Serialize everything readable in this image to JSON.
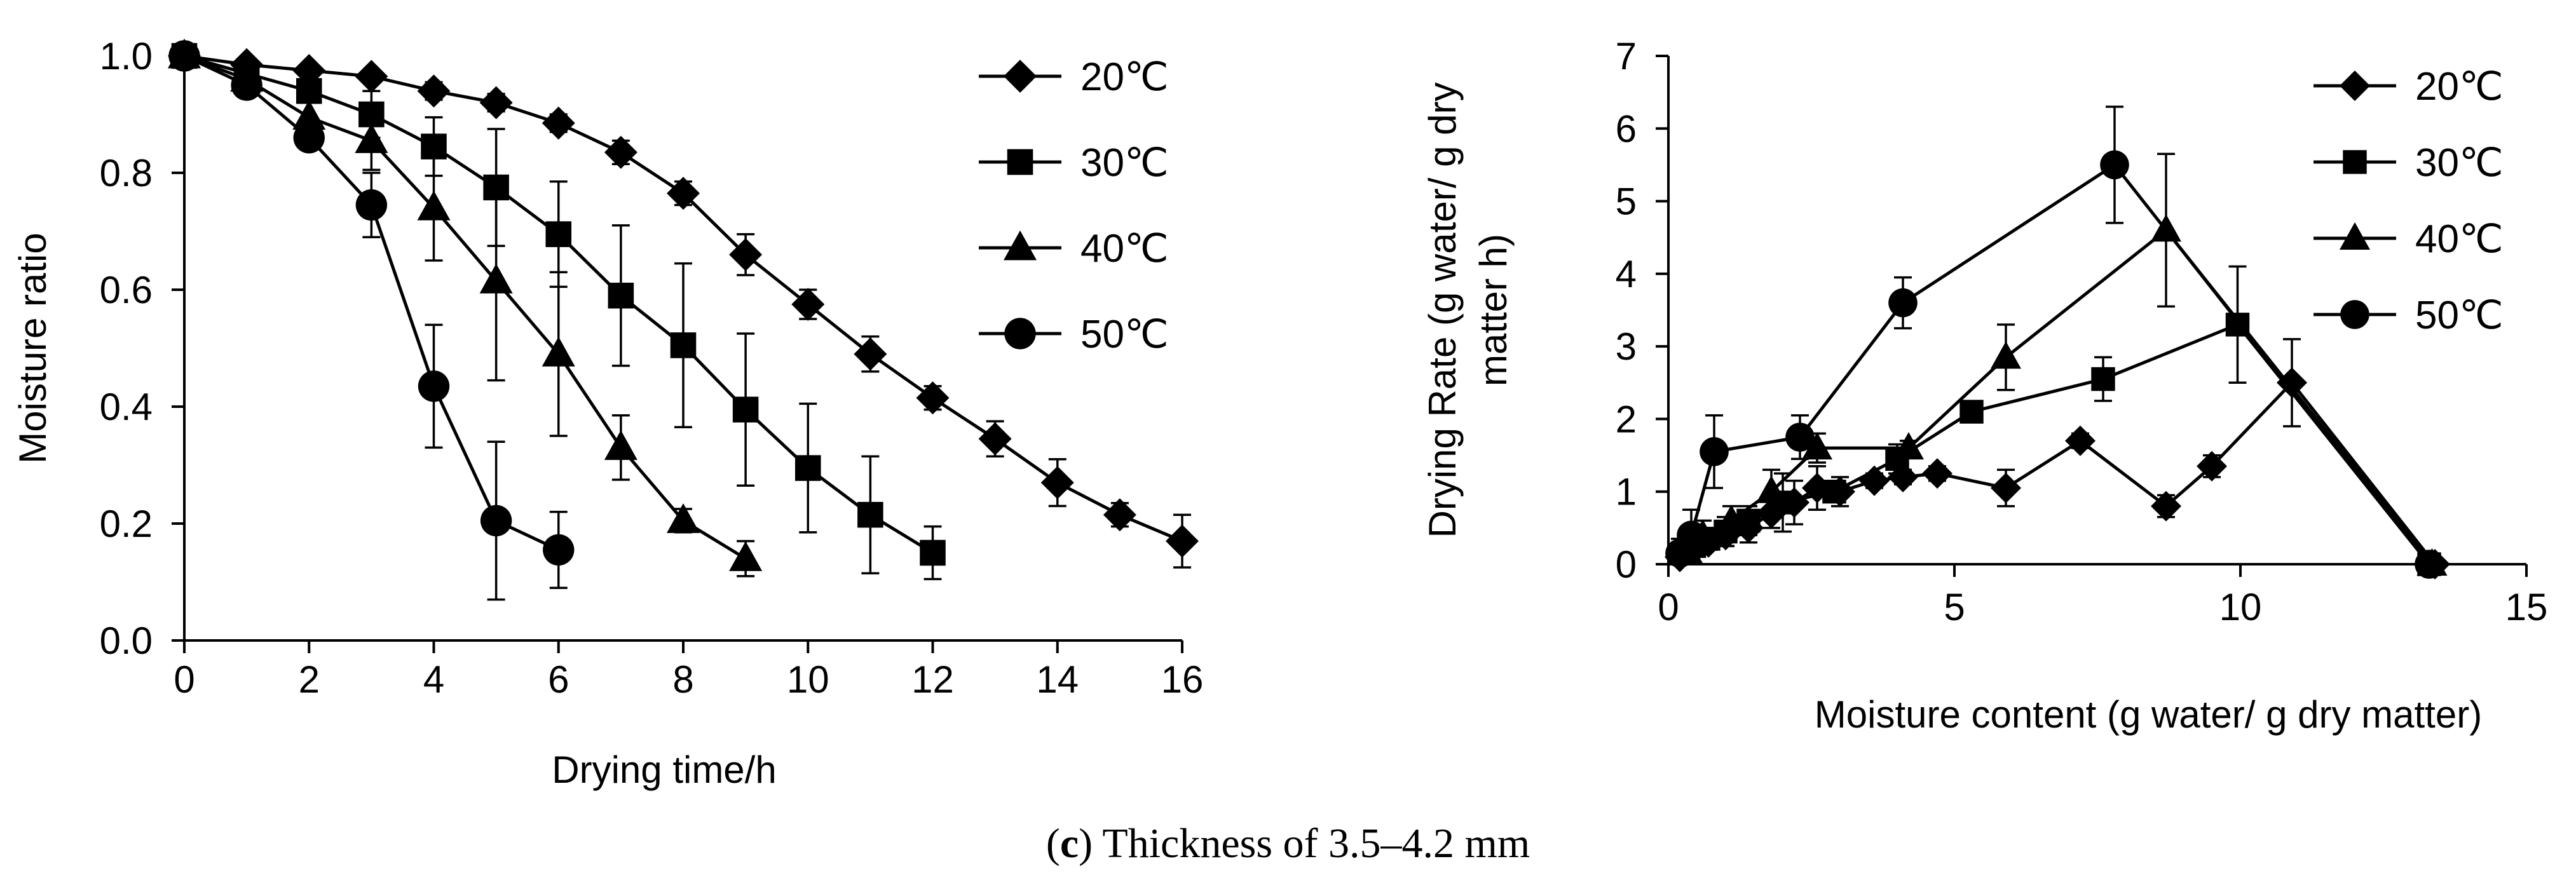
{
  "caption": {
    "label": "c",
    "text": "Thickness of 3.5–4.2 mm"
  },
  "chart_data": [
    {
      "type": "line",
      "title": "",
      "xlabel": "Drying time/h",
      "ylabel": "Moisture ratio",
      "xlim": [
        0,
        16
      ],
      "ylim": [
        0,
        1.0
      ],
      "xticks": [
        "0",
        "2",
        "4",
        "6",
        "8",
        "10",
        "12",
        "14",
        "16"
      ],
      "yticks": [
        "0.0",
        "0.2",
        "0.4",
        "0.6",
        "0.8",
        "1.0"
      ],
      "legend_position": "top-right",
      "series": [
        {
          "name": "20℃",
          "marker": "diamond",
          "x": [
            0,
            1,
            2,
            3,
            4,
            5,
            6,
            7,
            8,
            9,
            10,
            11,
            12,
            13,
            14,
            15,
            16
          ],
          "y": [
            1.0,
            0.985,
            0.975,
            0.965,
            0.94,
            0.92,
            0.885,
            0.835,
            0.765,
            0.66,
            0.575,
            0.49,
            0.415,
            0.345,
            0.27,
            0.215,
            0.17
          ],
          "err": [
            0,
            0.01,
            0.01,
            0.01,
            0.015,
            0.015,
            0.015,
            0.02,
            0.02,
            0.035,
            0.025,
            0.03,
            0.02,
            0.03,
            0.04,
            0.02,
            0.045
          ]
        },
        {
          "name": "30℃",
          "marker": "square",
          "x": [
            0,
            1,
            2,
            3,
            4,
            5,
            6,
            7,
            8,
            9,
            10,
            11,
            12
          ],
          "y": [
            1.0,
            0.97,
            0.94,
            0.9,
            0.845,
            0.775,
            0.695,
            0.59,
            0.505,
            0.395,
            0.295,
            0.215,
            0.15
          ],
          "err": [
            0,
            0.01,
            0.02,
            0.04,
            0.05,
            0.1,
            0.09,
            0.12,
            0.14,
            0.13,
            0.11,
            0.1,
            0.045
          ]
        },
        {
          "name": "40℃",
          "marker": "triangle",
          "x": [
            0,
            1,
            2,
            3,
            4,
            5,
            6,
            7,
            8,
            9
          ],
          "y": [
            1.0,
            0.96,
            0.895,
            0.855,
            0.74,
            0.615,
            0.49,
            0.33,
            0.205,
            0.14
          ],
          "err": [
            0,
            0.02,
            0.04,
            0.05,
            0.09,
            0.17,
            0.14,
            0.055,
            0.02,
            0.03
          ]
        },
        {
          "name": "50℃",
          "marker": "circle",
          "x": [
            0,
            1,
            2,
            3,
            4,
            5,
            6
          ],
          "y": [
            1.0,
            0.95,
            0.86,
            0.745,
            0.435,
            0.205,
            0.155
          ],
          "err": [
            0,
            0.01,
            0.02,
            0.055,
            0.105,
            0.135,
            0.065
          ]
        }
      ]
    },
    {
      "type": "line",
      "title": "",
      "xlabel": "Moisture content (g water/ g dry matter)",
      "ylabel": "Drying Rate (g water/ g dry matter h)",
      "ylabel_lines": [
        "Drying Rate (g water/ g dry",
        "matter h)"
      ],
      "xlim": [
        0,
        15
      ],
      "ylim": [
        0,
        7
      ],
      "xticks": [
        "0",
        "5",
        "10",
        "15"
      ],
      "yticks": [
        "0",
        "1",
        "2",
        "3",
        "4",
        "5",
        "6",
        "7"
      ],
      "legend_position": "top-right",
      "series": [
        {
          "name": "20℃",
          "marker": "diamond",
          "x": [
            13.4,
            10.9,
            9.5,
            8.7,
            7.2,
            5.9,
            4.7,
            4.1,
            3.6,
            3.0,
            2.6,
            2.2,
            1.8,
            1.4,
            1.0,
            0.7,
            0.4,
            0.2
          ],
          "y": [
            0,
            2.5,
            1.35,
            0.8,
            1.7,
            1.05,
            1.25,
            1.2,
            1.15,
            1.0,
            1.05,
            0.85,
            0.7,
            0.5,
            0.4,
            0.3,
            0.2,
            0.1
          ],
          "err": [
            0,
            0.6,
            0.15,
            0.15,
            0.1,
            0.25,
            0.1,
            0.1,
            0.1,
            0.2,
            0.3,
            0.3,
            0.2,
            0.2,
            0.15,
            0.1,
            0.1,
            0.05
          ]
        },
        {
          "name": "30℃",
          "marker": "square",
          "x": [
            13.3,
            9.95,
            7.6,
            5.3,
            4.0,
            2.9,
            2.0,
            1.4,
            1.0,
            0.7,
            0.45,
            0.25
          ],
          "y": [
            0,
            3.3,
            2.55,
            2.1,
            1.45,
            1.0,
            0.85,
            0.6,
            0.45,
            0.35,
            0.25,
            0.15
          ],
          "err": [
            0,
            0.8,
            0.3,
            0.1,
            0.2,
            0.1,
            0.4,
            0.2,
            0.2,
            0.15,
            0.1,
            0.05
          ]
        },
        {
          "name": "40℃",
          "marker": "triangle",
          "x": [
            13.35,
            8.7,
            5.9,
            4.2,
            2.6,
            1.8,
            1.1,
            0.6,
            0.35
          ],
          "y": [
            0,
            4.6,
            2.85,
            1.6,
            1.6,
            1.0,
            0.6,
            0.4,
            0.15
          ],
          "err": [
            0,
            1.05,
            0.45,
            0.1,
            0.2,
            0.3,
            0.2,
            0.2,
            0.1
          ]
        },
        {
          "name": "50℃",
          "marker": "circle",
          "x": [
            13.3,
            7.8,
            4.1,
            2.3,
            0.8,
            0.4,
            0.2
          ],
          "y": [
            0,
            5.5,
            3.6,
            1.75,
            1.55,
            0.4,
            0.15
          ],
          "err": [
            0,
            0.8,
            0.35,
            0.3,
            0.5,
            0.35,
            0.2
          ]
        }
      ]
    }
  ]
}
